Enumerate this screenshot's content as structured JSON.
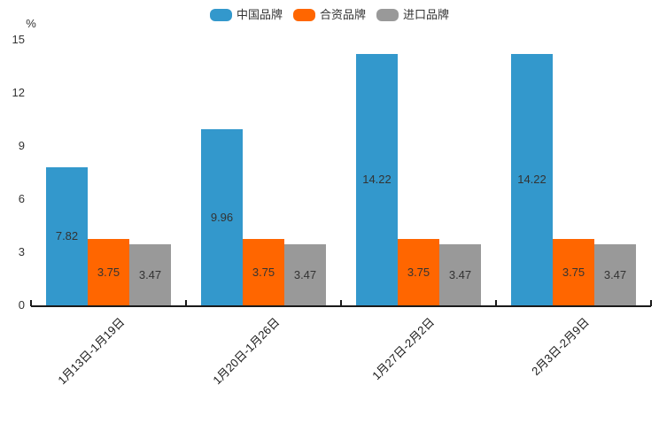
{
  "chart_data": {
    "type": "bar",
    "title": "",
    "categories": [
      "1月13日-1月19日",
      "1月20日-1月26日",
      "1月27日-2月2日",
      "2月3日-2月9日"
    ],
    "series": [
      {
        "name": "中国品牌",
        "color": "#3398CC",
        "values": [
          7.82,
          9.96,
          14.22,
          14.22
        ]
      },
      {
        "name": "合资品牌",
        "color": "#FF6600",
        "values": [
          3.75,
          3.75,
          3.75,
          3.75
        ]
      },
      {
        "name": "进口品牌",
        "color": "#999999",
        "values": [
          3.47,
          3.47,
          3.47,
          3.47
        ]
      }
    ],
    "y_axis": {
      "unit": "%",
      "min": 0,
      "max": 15,
      "ticks": [
        0,
        3,
        6,
        9,
        12,
        15
      ]
    },
    "x_label_rotation": -45,
    "legend_position": "top-center",
    "value_labels": "inside-center",
    "value_label_color": "#333333",
    "axis_color": "#1a1a1a",
    "grid": false
  }
}
